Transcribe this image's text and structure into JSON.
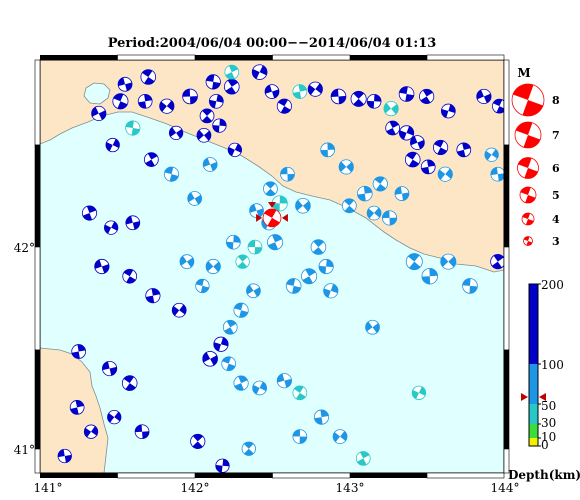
{
  "title": "Period:2004/06/04 00:00−−2014/06/04 01:13",
  "axes": {
    "x_ticks": [
      "141°",
      "142°",
      "143°",
      "144°"
    ],
    "y_ticks": [
      "42°",
      "41°"
    ]
  },
  "magnitude_legend": {
    "heading": "M",
    "labels": [
      "8",
      "7",
      "6",
      "5",
      "4",
      "3"
    ]
  },
  "depth_legend": {
    "tick_labels": [
      "200",
      "100",
      "50",
      "30",
      "10",
      "0"
    ],
    "title": "Depth(km)"
  },
  "colors": {
    "sea": "#e0ffff",
    "land": "#fde6c6",
    "coast": "#7f8e8e",
    "deep": "#0000c8",
    "mid": "#1e96e6",
    "shallow": "#28c8c8",
    "veryshallow": "#3cdc3c",
    "legend_mech": "#ff0000",
    "frame": "#000000"
  },
  "map_data": {
    "lon_range": [
      141,
      144
    ],
    "lat_range": [
      40.85,
      42.55
    ],
    "events": [
      [
        141.38,
        42.33,
        4.4,
        220
      ],
      [
        141.52,
        42.38,
        4.6,
        200
      ],
      [
        141.26,
        42.62,
        4.4,
        150
      ],
      [
        141.47,
        42.2,
        4.2,
        160
      ],
      [
        141.55,
        42.45,
        4.3,
        180
      ],
      [
        141.7,
        42.48,
        4.5,
        150
      ],
      [
        141.68,
        42.38,
        4.3,
        130
      ],
      [
        141.82,
        42.36,
        4.4,
        170
      ],
      [
        141.97,
        42.4,
        4.5,
        160
      ],
      [
        142.08,
        42.32,
        4.3,
        150
      ],
      [
        142.16,
        42.28,
        4.2,
        130
      ],
      [
        142.06,
        42.24,
        4.3,
        180
      ],
      [
        142.12,
        42.46,
        4.4,
        170
      ],
      [
        142.24,
        42.44,
        4.5,
        160
      ],
      [
        142.14,
        42.38,
        4.3,
        140
      ],
      [
        141.88,
        42.25,
        4.2,
        120
      ],
      [
        141.6,
        42.27,
        4.4,
        30
      ],
      [
        142.24,
        42.5,
        4.3,
        20
      ],
      [
        142.42,
        42.5,
        4.5,
        180
      ],
      [
        142.5,
        42.42,
        4.3,
        170
      ],
      [
        142.58,
        42.36,
        4.4,
        160
      ],
      [
        142.68,
        42.42,
        4.3,
        25
      ],
      [
        142.78,
        42.43,
        4.4,
        150
      ],
      [
        142.93,
        42.4,
        4.5,
        120
      ],
      [
        143.06,
        42.39,
        4.6,
        140
      ],
      [
        143.16,
        42.38,
        4.3,
        150
      ],
      [
        143.27,
        42.35,
        4.4,
        30
      ],
      [
        143.37,
        42.41,
        4.5,
        100
      ],
      [
        143.5,
        42.4,
        4.4,
        170
      ],
      [
        143.64,
        42.34,
        4.3,
        150
      ],
      [
        143.87,
        42.4,
        4.4,
        120
      ],
      [
        143.97,
        42.36,
        4.3,
        130
      ],
      [
        143.28,
        42.27,
        4.3,
        120
      ],
      [
        143.37,
        42.25,
        4.4,
        150
      ],
      [
        143.44,
        42.21,
        4.3,
        140
      ],
      [
        143.59,
        42.19,
        4.4,
        110
      ],
      [
        143.74,
        42.18,
        4.3,
        100
      ],
      [
        143.92,
        42.16,
        4.2,
        90
      ],
      [
        143.96,
        42.08,
        4.3,
        80
      ],
      [
        143.41,
        42.14,
        4.5,
        120
      ],
      [
        143.51,
        42.11,
        4.3,
        100
      ],
      [
        143.62,
        42.08,
        4.4,
        90
      ],
      [
        143.34,
        42.0,
        4.3,
        85
      ],
      [
        143.2,
        42.04,
        4.4,
        80
      ],
      [
        143.1,
        42.0,
        4.5,
        75
      ],
      [
        143.16,
        41.92,
        4.3,
        80
      ],
      [
        143.26,
        41.9,
        4.4,
        85
      ],
      [
        143.0,
        41.95,
        4.3,
        90
      ],
      [
        142.86,
        42.18,
        4.3,
        60
      ],
      [
        142.98,
        42.11,
        4.4,
        70
      ],
      [
        142.6,
        42.08,
        4.3,
        60
      ],
      [
        142.49,
        42.02,
        4.3,
        50
      ],
      [
        142.55,
        41.96,
        4.6,
        45
      ],
      [
        142.7,
        41.95,
        4.5,
        55
      ],
      [
        142.39,
        41.78,
        4.3,
        45
      ],
      [
        142.31,
        41.72,
        4.2,
        40
      ],
      [
        142.25,
        41.8,
        4.3,
        50
      ],
      [
        142.12,
        41.7,
        4.4,
        60
      ],
      [
        142.64,
        41.62,
        4.5,
        85
      ],
      [
        142.74,
        41.66,
        4.6,
        90
      ],
      [
        142.88,
        41.6,
        4.4,
        80
      ],
      [
        142.38,
        41.6,
        4.3,
        70
      ],
      [
        142.3,
        41.52,
        4.4,
        85
      ],
      [
        142.23,
        41.45,
        4.3,
        90
      ],
      [
        142.17,
        41.38,
        4.4,
        100
      ],
      [
        142.1,
        41.32,
        4.5,
        110
      ],
      [
        142.22,
        41.3,
        4.3,
        85
      ],
      [
        142.3,
        41.22,
        4.4,
        90
      ],
      [
        142.42,
        41.2,
        4.3,
        70
      ],
      [
        142.58,
        41.23,
        4.4,
        55
      ],
      [
        142.68,
        41.18,
        4.3,
        45
      ],
      [
        142.82,
        41.08,
        4.4,
        60
      ],
      [
        142.94,
        41.0,
        4.3,
        65
      ],
      [
        141.4,
        41.7,
        4.4,
        120
      ],
      [
        141.58,
        41.66,
        4.3,
        140
      ],
      [
        141.73,
        41.58,
        4.4,
        110
      ],
      [
        141.9,
        41.52,
        4.3,
        100
      ],
      [
        141.45,
        41.28,
        4.4,
        110
      ],
      [
        141.58,
        41.22,
        4.5,
        180
      ],
      [
        141.24,
        41.12,
        4.3,
        170
      ],
      [
        141.48,
        41.08,
        4.2,
        130
      ],
      [
        141.66,
        41.02,
        4.3,
        150
      ],
      [
        142.02,
        40.98,
        4.4,
        120
      ],
      [
        142.18,
        40.88,
        4.2,
        110
      ],
      [
        141.95,
        41.72,
        4.3,
        90
      ],
      [
        142.05,
        41.62,
        4.2,
        80
      ],
      [
        142.52,
        41.8,
        4.6,
        60
      ],
      [
        142.48,
        41.88,
        4.4,
        65
      ],
      [
        142.4,
        41.93,
        4.3,
        55
      ],
      [
        143.42,
        41.72,
        4.8,
        80
      ],
      [
        143.52,
        41.66,
        4.7,
        85
      ],
      [
        143.64,
        41.72,
        4.6,
        60
      ],
      [
        143.78,
        41.62,
        4.5,
        90
      ],
      [
        143.96,
        41.72,
        4.4,
        120
      ],
      [
        141.32,
        41.92,
        4.4,
        150
      ],
      [
        141.46,
        41.86,
        4.2,
        130
      ],
      [
        141.6,
        41.88,
        4.3,
        120
      ],
      [
        142.8,
        41.78,
        4.5,
        70
      ],
      [
        142.85,
        41.7,
        4.4,
        80
      ],
      [
        143.15,
        41.45,
        4.3,
        60
      ],
      [
        142.68,
        41.0,
        4.3,
        50
      ],
      [
        142.35,
        40.95,
        4.2,
        60
      ],
      [
        141.25,
        41.35,
        4.3,
        140
      ],
      [
        141.33,
        41.02,
        4.2,
        160
      ],
      [
        141.16,
        40.92,
        4.2,
        100
      ],
      [
        143.09,
        40.91,
        4.3,
        25
      ],
      [
        143.45,
        41.18,
        4.2,
        30
      ],
      [
        142.0,
        41.98,
        4.3,
        70
      ],
      [
        141.85,
        42.08,
        4.4,
        90
      ],
      [
        141.72,
        42.14,
        4.3,
        110
      ],
      [
        142.26,
        42.18,
        4.2,
        120
      ],
      [
        142.1,
        42.12,
        4.3,
        95
      ]
    ],
    "hypocenter": {
      "lon": 142.5,
      "lat": 41.9,
      "mag": 5.2,
      "depth": 50
    }
  }
}
